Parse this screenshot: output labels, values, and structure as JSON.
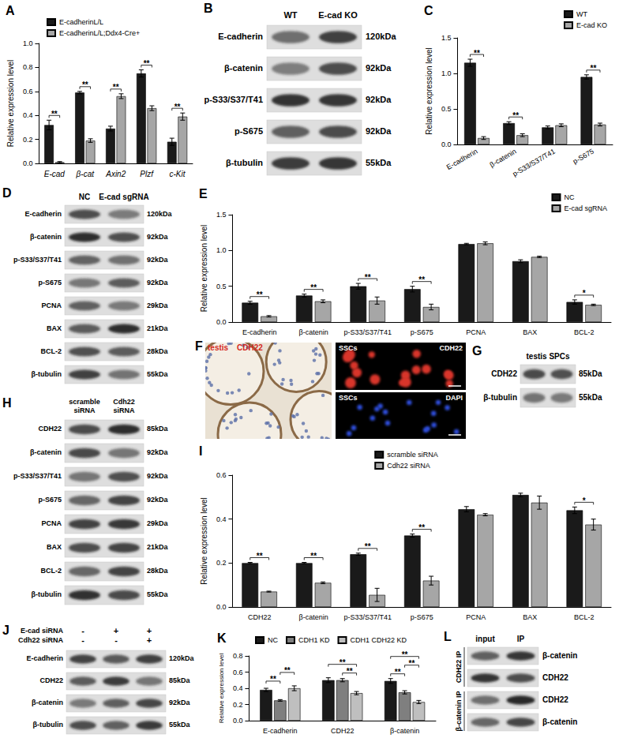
{
  "chart_data": [
    {
      "type": "bar",
      "title": "A",
      "ylabel": "Relative expression level",
      "categories": [
        "E-cad",
        "β-cat",
        "Axin2",
        "Plzf",
        "c-Kit"
      ],
      "series": [
        {
          "name": "E-cadherinL/L",
          "color": "#1a1a1a",
          "values": [
            0.32,
            0.59,
            0.29,
            0.75,
            0.18
          ],
          "errors": [
            0.04,
            0.01,
            0.02,
            0.03,
            0.03
          ]
        },
        {
          "name": "E-cadherinL/L;Ddx4-Cre+",
          "color": "#a6a6a6",
          "values": [
            0.01,
            0.19,
            0.56,
            0.46,
            0.39
          ],
          "errors": [
            0.005,
            0.015,
            0.02,
            0.02,
            0.03
          ]
        }
      ],
      "ylim": [
        0,
        1
      ],
      "yticks": [
        {
          "value": 0,
          "label": "0.0"
        },
        0.2,
        0.4,
        0.6,
        0.8,
        {
          "value": 1,
          "label": "1.0"
        }
      ],
      "legend": "upper left",
      "grid": false,
      "annotations": [
        {
          "category": "E-cad",
          "from": "E-cadherinL/L",
          "to": "E-cadherinL/L;Ddx4-Cre+",
          "label": "**"
        },
        {
          "category": "β-cat",
          "from": "E-cadherinL/L",
          "to": "E-cadherinL/L;Ddx4-Cre+",
          "label": "**"
        },
        {
          "category": "Axin2",
          "from": "E-cadherinL/L",
          "to": "E-cadherinL/L;Ddx4-Cre+",
          "label": "**"
        },
        {
          "category": "Plzf",
          "from": "E-cadherinL/L",
          "to": "E-cadherinL/L;Ddx4-Cre+",
          "label": "**"
        },
        {
          "category": "c-Kit",
          "from": "E-cadherinL/L",
          "to": "E-cadherinL/L;Ddx4-Cre+",
          "label": "**"
        }
      ]
    },
    {
      "type": "bar",
      "title": "C",
      "ylabel": "Relative expression level",
      "categories": [
        "E-cadherin",
        "β-catenin",
        "p-S33/S37/T41",
        "p-S675"
      ],
      "series": [
        {
          "name": "WT",
          "color": "#1a1a1a",
          "values": [
            1.15,
            0.3,
            0.24,
            0.95
          ],
          "errors": [
            0.05,
            0.02,
            0.02,
            0.03
          ]
        },
        {
          "name": "E-cad KO",
          "color": "#a6a6a6",
          "values": [
            0.09,
            0.13,
            0.27,
            0.28
          ],
          "errors": [
            0.02,
            0.02,
            0.02,
            0.02
          ]
        }
      ],
      "ylim": [
        0,
        1.5
      ],
      "yticks": [
        {
          "value": 0,
          "label": "0.0"
        },
        0.5,
        {
          "value": 1,
          "label": "1.0"
        },
        1.5
      ],
      "legend": "upper right",
      "grid": false,
      "annotations": [
        {
          "category": "E-cadherin",
          "from": "WT",
          "to": "E-cad KO",
          "label": "**"
        },
        {
          "category": "β-catenin",
          "from": "WT",
          "to": "E-cad KO",
          "label": "**"
        },
        {
          "category": "p-S675",
          "from": "WT",
          "to": "E-cad KO",
          "label": "**"
        }
      ]
    },
    {
      "type": "bar",
      "title": "E",
      "ylabel": "Relative expression level",
      "categories": [
        "E-cadherin",
        "β-catenin",
        "p-S33/S37/T41",
        "p-S675",
        "PCNA",
        "BAX",
        "BCL-2"
      ],
      "series": [
        {
          "name": "NC",
          "color": "#1a1a1a",
          "values": [
            0.27,
            0.37,
            0.5,
            0.46,
            1.09,
            0.85,
            0.28
          ],
          "errors": [
            0.02,
            0.02,
            0.04,
            0.04,
            0.01,
            0.02,
            0.03
          ]
        },
        {
          "name": "E-cad sgRNA",
          "color": "#a6a6a6",
          "values": [
            0.08,
            0.29,
            0.3,
            0.21,
            1.1,
            0.91,
            0.24
          ],
          "errors": [
            0.01,
            0.02,
            0.05,
            0.04,
            0.02,
            0.01,
            0.01
          ]
        }
      ],
      "ylim": [
        0,
        1.5
      ],
      "yticks": [
        {
          "value": 0,
          "label": "0.0"
        },
        0.5,
        {
          "value": 1,
          "label": "1.0"
        },
        1.5
      ],
      "legend": "upper right",
      "grid": false,
      "annotations": [
        {
          "category": "E-cadherin",
          "from": "NC",
          "to": "E-cad sgRNA",
          "label": "**"
        },
        {
          "category": "β-catenin",
          "from": "NC",
          "to": "E-cad sgRNA",
          "label": "**"
        },
        {
          "category": "p-S33/S37/T41",
          "from": "NC",
          "to": "E-cad sgRNA",
          "label": "**"
        },
        {
          "category": "p-S675",
          "from": "NC",
          "to": "E-cad sgRNA",
          "label": "**"
        },
        {
          "category": "BCL-2",
          "from": "NC",
          "to": "E-cad sgRNA",
          "label": "*"
        }
      ]
    },
    {
      "type": "bar",
      "title": "I",
      "ylabel": "Relative expression level",
      "categories": [
        "CDH22",
        "β-catenin",
        "p-S33/S37/T41",
        "p-S675",
        "PCNA",
        "BAX",
        "BCL-2"
      ],
      "series": [
        {
          "name": "scramble siRNA",
          "color": "#1a1a1a",
          "values": [
            0.2,
            0.2,
            0.24,
            0.325,
            0.445,
            0.51,
            0.44
          ],
          "errors": [
            0.003,
            0.003,
            0.005,
            0.007,
            0.012,
            0.008,
            0.015
          ]
        },
        {
          "name": "Cdh22 siRNA",
          "color": "#a6a6a6",
          "values": [
            0.07,
            0.11,
            0.055,
            0.12,
            0.42,
            0.475,
            0.375
          ],
          "errors": [
            0.002,
            0.004,
            0.03,
            0.02,
            0.005,
            0.03,
            0.025
          ]
        }
      ],
      "ylim": [
        0,
        0.6
      ],
      "yticks": [
        {
          "value": 0,
          "label": "0.0"
        },
        0.2,
        0.4,
        0.6
      ],
      "legend": "upper center",
      "grid": false,
      "annotations": [
        {
          "category": "CDH22",
          "from": "scramble siRNA",
          "to": "Cdh22 siRNA",
          "label": "**"
        },
        {
          "category": "β-catenin",
          "from": "scramble siRNA",
          "to": "Cdh22 siRNA",
          "label": "**"
        },
        {
          "category": "p-S33/S37/T41",
          "from": "scramble siRNA",
          "to": "Cdh22 siRNA",
          "label": "**"
        },
        {
          "category": "p-S675",
          "from": "scramble siRNA",
          "to": "Cdh22 siRNA",
          "label": "**"
        },
        {
          "category": "BCL-2",
          "from": "scramble siRNA",
          "to": "Cdh22 siRNA",
          "label": "*"
        }
      ]
    },
    {
      "type": "bar",
      "title": "K",
      "ylabel": "Relative expression level",
      "categories": [
        "E-cadherin",
        "CDH22",
        "β-catenin"
      ],
      "series": [
        {
          "name": "NC",
          "color": "#1a1a1a",
          "values": [
            0.38,
            0.5,
            0.49
          ],
          "errors": [
            0.02,
            0.03,
            0.03
          ]
        },
        {
          "name": "CDH1 KD",
          "color": "#7f7f7f",
          "values": [
            0.25,
            0.5,
            0.35
          ],
          "errors": [
            0.01,
            0.02,
            0.02
          ]
        },
        {
          "name": "CDH1 CDH22 KD",
          "color": "#bfbfbf",
          "values": [
            0.4,
            0.34,
            0.23
          ],
          "errors": [
            0.03,
            0.02,
            0.02
          ]
        }
      ],
      "ylim": [
        0,
        0.8
      ],
      "yticks": [
        {
          "value": 0,
          "label": "0.0"
        },
        0.2,
        0.4,
        0.6,
        0.8
      ],
      "legend": "upper left",
      "grid": false,
      "annotations": [
        {
          "category": "E-cadherin",
          "from": "NC",
          "to": "CDH1 KD",
          "label": "**"
        },
        {
          "category": "E-cadherin",
          "from": "CDH1 KD",
          "to": "CDH1 CDH22 KD",
          "label": "**"
        },
        {
          "category": "CDH22",
          "from": "CDH1 KD",
          "to": "CDH1 CDH22 KD",
          "label": "**"
        },
        {
          "category": "CDH22",
          "from": "NC",
          "to": "CDH1 CDH22 KD",
          "label": "**"
        },
        {
          "category": "β-catenin",
          "from": "NC",
          "to": "CDH1 KD",
          "label": "**"
        },
        {
          "category": "β-catenin",
          "from": "CDH1 KD",
          "to": "CDH1 CDH22 KD",
          "label": "**"
        },
        {
          "category": "β-catenin",
          "from": "NC",
          "to": "CDH1 CDH22 KD",
          "label": "**"
        }
      ]
    }
  ],
  "blots": [
    {
      "panel": "B",
      "columns": [
        "WT",
        "E-cad KO"
      ],
      "rows": [
        {
          "label": "E-cadherin",
          "size": "120kDa"
        },
        {
          "label": "β-catenin",
          "size": "92kDa"
        },
        {
          "label": "p-S33/S37/T41",
          "size": "92kDa"
        },
        {
          "label": "p-S675",
          "size": "92kDa"
        },
        {
          "label": "β-tubulin",
          "size": "55kDa"
        }
      ]
    },
    {
      "panel": "D",
      "columns": [
        "NC",
        "E-cad sgRNA"
      ],
      "rows": [
        {
          "label": "E-cadherin",
          "size": "120kDa"
        },
        {
          "label": "β-catenin",
          "size": "92kDa"
        },
        {
          "label": "p-S33/S37/T41",
          "size": "92kDa"
        },
        {
          "label": "p-S675",
          "size": "92kDa"
        },
        {
          "label": "PCNA",
          "size": "29kDa"
        },
        {
          "label": "BAX",
          "size": "21kDa"
        },
        {
          "label": "BCL-2",
          "size": "28kDa"
        },
        {
          "label": "β-tubulin",
          "size": "55kDa"
        }
      ]
    },
    {
      "panel": "G",
      "columns": [
        "testis SPCs"
      ],
      "rows": [
        {
          "label": "CDH22",
          "size": "85kDa"
        },
        {
          "label": "β-tubulin",
          "size": "55kDa"
        }
      ]
    },
    {
      "panel": "H",
      "columns": [
        "scramble siRNA",
        "Cdh22 siRNA"
      ],
      "rows": [
        {
          "label": "CDH22",
          "size": "85kDa"
        },
        {
          "label": "β-catenin",
          "size": "92kDa"
        },
        {
          "label": "p-S33/S37/T41",
          "size": "92kDa"
        },
        {
          "label": "p-S675",
          "size": "92kDa"
        },
        {
          "label": "PCNA",
          "size": "29kDa"
        },
        {
          "label": "BAX",
          "size": "21kDa"
        },
        {
          "label": "BCL-2",
          "size": "28kDa"
        },
        {
          "label": "β-tubulin",
          "size": "55kDa"
        }
      ]
    },
    {
      "panel": "J",
      "conditions": [
        {
          "label": "E-cad siRNA",
          "marks": [
            "-",
            "+",
            "+"
          ]
        },
        {
          "label": "Cdh22 siRNA",
          "marks": [
            "-",
            "-",
            "+"
          ]
        }
      ],
      "rows": [
        {
          "label": "E-cadherin",
          "size": "120kDa"
        },
        {
          "label": "CDH22",
          "size": "85kDa"
        },
        {
          "label": "β-catenin",
          "size": "92kDa"
        },
        {
          "label": "β-tubulin",
          "size": "55kDa"
        }
      ]
    },
    {
      "panel": "L",
      "columns": [
        "input",
        "IP"
      ],
      "groups": [
        {
          "label": "CDH22 IP",
          "rows": [
            {
              "label": "β-catenin"
            },
            {
              "label": "CDH22"
            }
          ]
        },
        {
          "label": "β-catenin IP",
          "rows": [
            {
              "label": "CDH22"
            },
            {
              "label": "β-catenin"
            }
          ]
        }
      ]
    }
  ],
  "micrograph": {
    "panel": "F",
    "tiles": [
      {
        "labels": [
          "testis",
          "CDH22"
        ]
      },
      {
        "labels": [
          "SSCs",
          "CDH22"
        ]
      },
      {
        "labels": [
          "SSCs",
          "DAPI"
        ]
      }
    ]
  }
}
